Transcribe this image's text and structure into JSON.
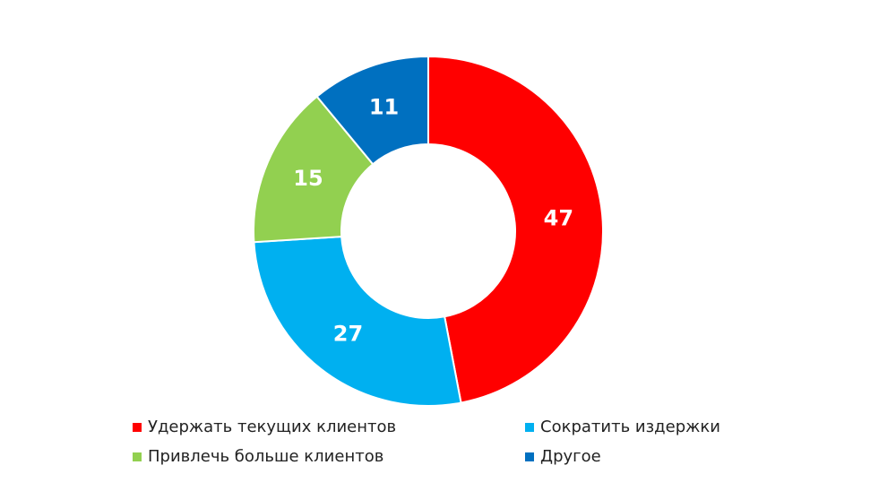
{
  "chart_data": {
    "type": "donut",
    "categories": [
      "Удержать текущих клиентов",
      "Сократить издержки",
      "Привлечь больше клиентов",
      "Другое"
    ],
    "values": [
      47,
      27,
      15,
      11
    ],
    "colors": [
      "#ff0000",
      "#00b0f0",
      "#92d050",
      "#0070c0"
    ]
  }
}
